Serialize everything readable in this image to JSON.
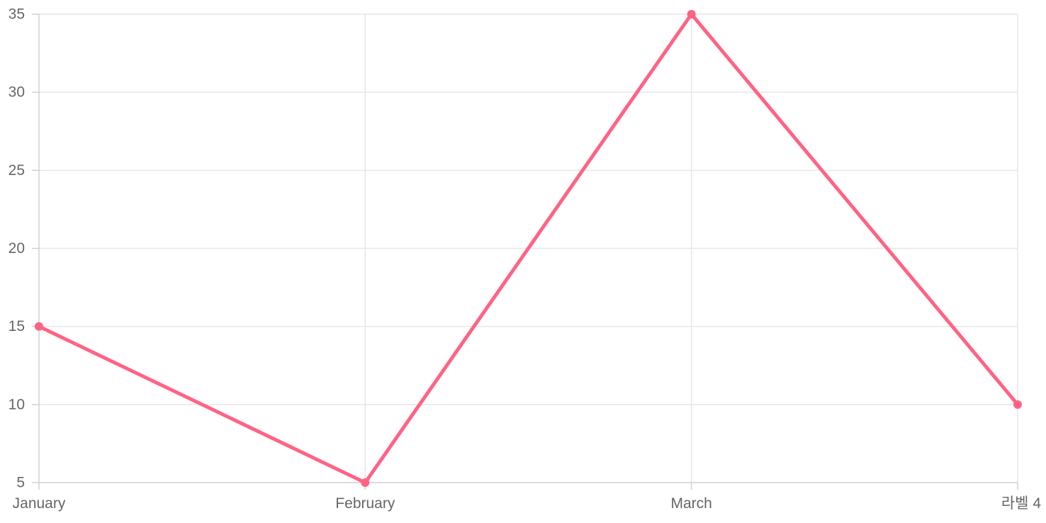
{
  "chart_data": {
    "type": "line",
    "categories": [
      "January",
      "February",
      "March",
      "라벨 4"
    ],
    "series": [
      {
        "values": [
          15,
          5,
          35,
          10
        ],
        "color": "#ff6384"
      }
    ],
    "ylim": [
      5,
      35
    ],
    "yticks": [
      5,
      10,
      15,
      20,
      25,
      30,
      35
    ],
    "grid": true,
    "title": "",
    "xlabel": "",
    "ylabel": ""
  }
}
